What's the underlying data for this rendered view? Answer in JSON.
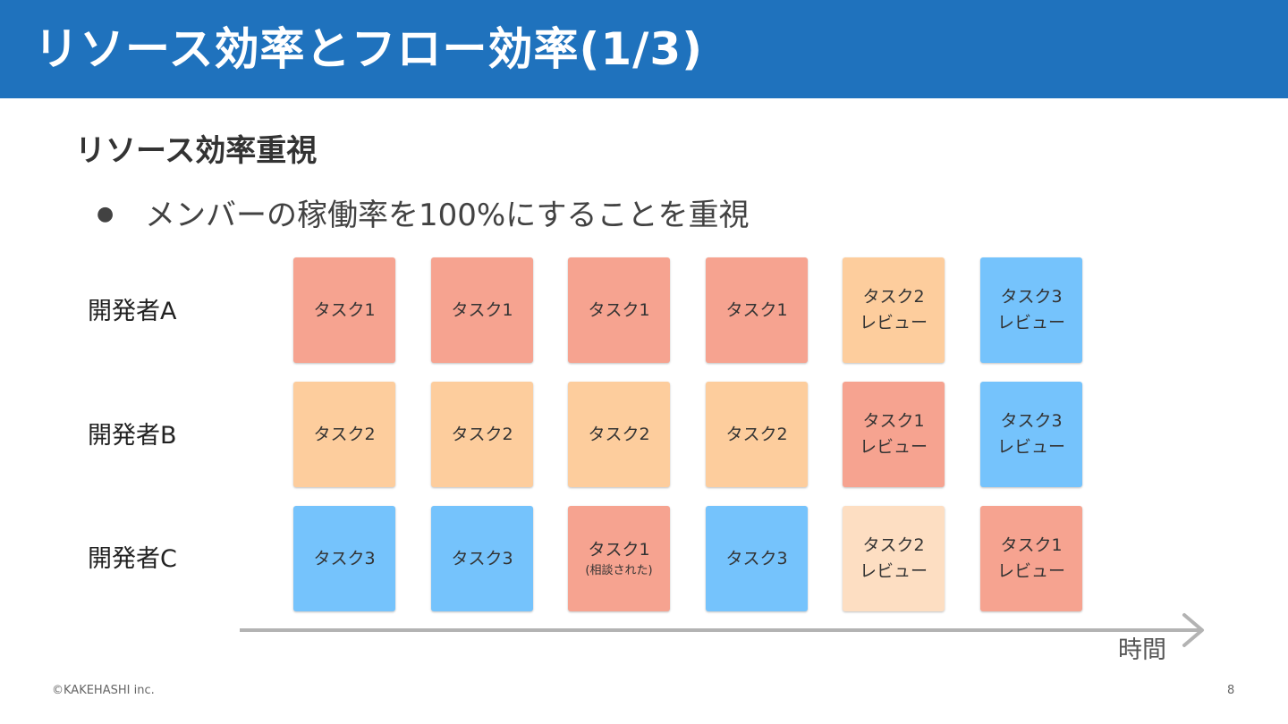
{
  "slide": {
    "title": "リソース効率とフロー効率(1/3)",
    "subtitle": "リソース効率重視",
    "bullet_mark": "●",
    "bullet": "メンバーの稼働率を100%にすることを重視",
    "time_axis_label": "時間",
    "footer_copyright": "©KAKEHASHI inc.",
    "page_number": "8"
  },
  "colors": {
    "title_bar": "#1f72bd",
    "task1": "#f6a390",
    "task2": "#fdcd9d",
    "task3": "#75c3fc",
    "task2_review_light": "#fddec2",
    "timeline": "#b3b3b3"
  },
  "developers": [
    {
      "label": "開発者A",
      "cards": [
        {
          "line1": "タスク1",
          "line2": "",
          "color": "red"
        },
        {
          "line1": "タスク1",
          "line2": "",
          "color": "red"
        },
        {
          "line1": "タスク1",
          "line2": "",
          "color": "red"
        },
        {
          "line1": "タスク1",
          "line2": "",
          "color": "red"
        },
        {
          "line1": "タスク2",
          "line2": "レビュー",
          "color": "orange"
        },
        {
          "line1": "タスク3",
          "line2": "レビュー",
          "color": "blue"
        }
      ]
    },
    {
      "label": "開発者B",
      "cards": [
        {
          "line1": "タスク2",
          "line2": "",
          "color": "orange"
        },
        {
          "line1": "タスク2",
          "line2": "",
          "color": "orange"
        },
        {
          "line1": "タスク2",
          "line2": "",
          "color": "orange"
        },
        {
          "line1": "タスク2",
          "line2": "",
          "color": "orange"
        },
        {
          "line1": "タスク1",
          "line2": "レビュー",
          "color": "red"
        },
        {
          "line1": "タスク3",
          "line2": "レビュー",
          "color": "blue"
        }
      ]
    },
    {
      "label": "開発者C",
      "cards": [
        {
          "line1": "タスク3",
          "line2": "",
          "color": "blue"
        },
        {
          "line1": "タスク3",
          "line2": "",
          "color": "blue"
        },
        {
          "line1": "タスク1",
          "line2": "(相談された)",
          "color": "red"
        },
        {
          "line1": "タスク3",
          "line2": "",
          "color": "blue"
        },
        {
          "line1": "タスク2",
          "line2": "レビュー",
          "color": "peach"
        },
        {
          "line1": "タスク1",
          "line2": "レビュー",
          "color": "red"
        }
      ]
    }
  ]
}
